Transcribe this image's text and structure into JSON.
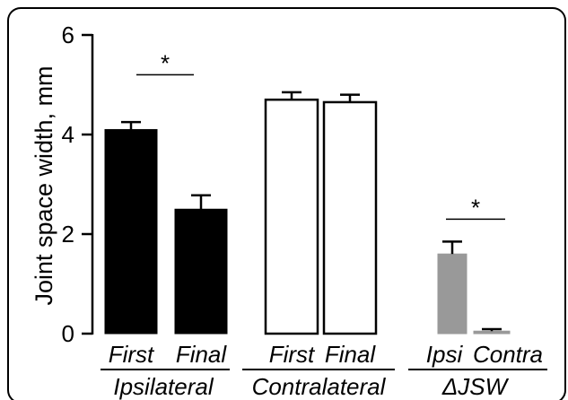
{
  "chart_data": {
    "type": "bar",
    "ylabel": "Joint space width, mm",
    "ylim": [
      0,
      6
    ],
    "yticks": [
      "0",
      "2",
      "4",
      "6"
    ],
    "bars": [
      {
        "label": "First",
        "group": "Ipsilateral",
        "value": 4.1,
        "error": 0.15,
        "fill": "#000000"
      },
      {
        "label": "Final",
        "group": "Ipsilateral",
        "value": 2.5,
        "error": 0.28,
        "fill": "#000000"
      },
      {
        "label": "First",
        "group": "Contralateral",
        "value": 4.7,
        "error": 0.15,
        "fill": "#ffffff"
      },
      {
        "label": "Final",
        "group": "Contralateral",
        "value": 4.65,
        "error": 0.15,
        "fill": "#ffffff"
      },
      {
        "label": "Ipsi",
        "group": "ΔJSW",
        "value": 1.6,
        "error": 0.25,
        "fill": "#999999"
      },
      {
        "label": "Contra",
        "group": "ΔJSW",
        "value": 0.05,
        "error": 0.04,
        "fill": "#999999"
      }
    ],
    "groups": [
      "Ipsilateral",
      "Contralateral",
      "ΔJSW"
    ],
    "significance": [
      {
        "label": "*",
        "from_bar": 0,
        "to_bar": 1,
        "y": 5.2
      },
      {
        "label": "*",
        "from_bar": 4,
        "to_bar": 5,
        "y": 2.3
      }
    ],
    "grid": false,
    "legend": "none"
  }
}
